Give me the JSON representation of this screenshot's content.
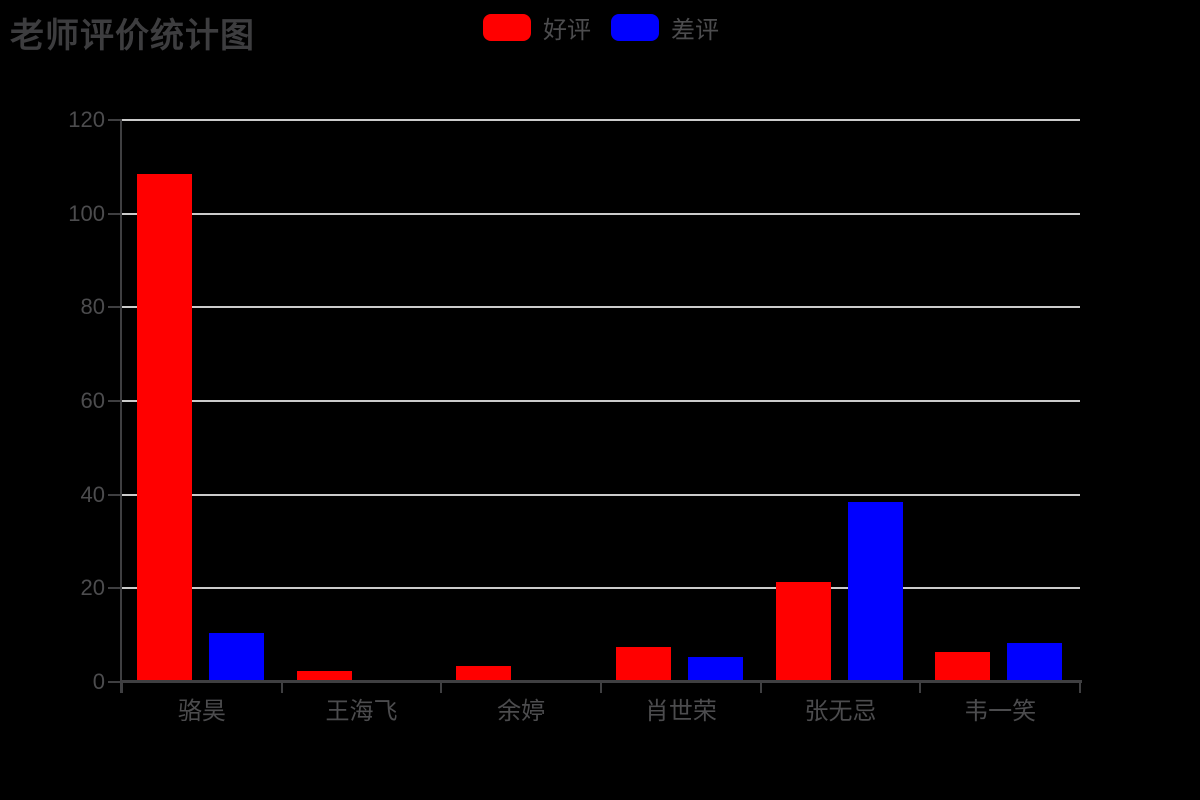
{
  "chart_data": {
    "type": "bar",
    "title": "老师评价统计图",
    "categories": [
      "骆昊",
      "王海飞",
      "余婷",
      "肖世荣",
      "张无忌",
      "韦一笑"
    ],
    "series": [
      {
        "name": "好评",
        "color": "#ff0000",
        "values": [
          108,
          2,
          3,
          7,
          21,
          6
        ]
      },
      {
        "name": "差评",
        "color": "#0000ff",
        "values": [
          10,
          0,
          0,
          5,
          38,
          8
        ]
      }
    ],
    "xlabel": "",
    "ylabel": "",
    "ylim": [
      0,
      120
    ],
    "yticks": [
      0,
      20,
      40,
      60,
      80,
      100,
      120
    ],
    "y_tick_labels": [
      "0",
      "20",
      "40",
      "60",
      "80",
      "100",
      "120"
    ],
    "grid": true,
    "legend_position": "top-center",
    "colors": {
      "background": "#000000",
      "title_text": "#3d3d3f",
      "axis_text": "#4c4c4e",
      "axis_line": "#3f3f41",
      "gridline": "#cbcbcb"
    }
  }
}
